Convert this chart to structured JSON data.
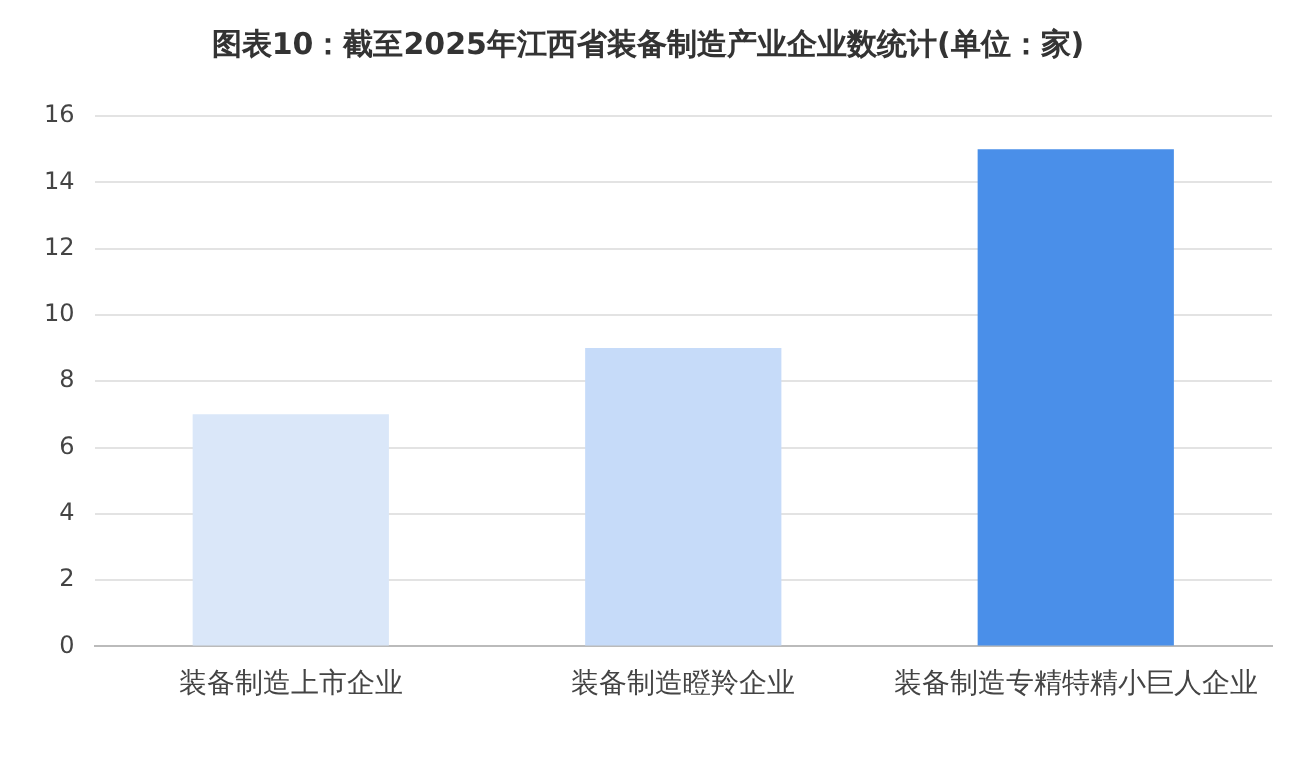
{
  "chart_data": {
    "type": "bar",
    "title": "图表10：截至2025年江西省装备制造产业企业数统计(单位：家)",
    "categories": [
      "装备制造上市企业",
      "装备制造瞪羚企业",
      "装备制造专精特精小巨人企业"
    ],
    "values": [
      7,
      9,
      15
    ],
    "colors": [
      "#dae7f9",
      "#c6dbf9",
      "#4a8fe9"
    ],
    "ylim": [
      0,
      16
    ],
    "yticks": [
      0,
      2,
      4,
      6,
      8,
      10,
      12,
      14,
      16
    ],
    "grid": "y",
    "legend": false
  }
}
